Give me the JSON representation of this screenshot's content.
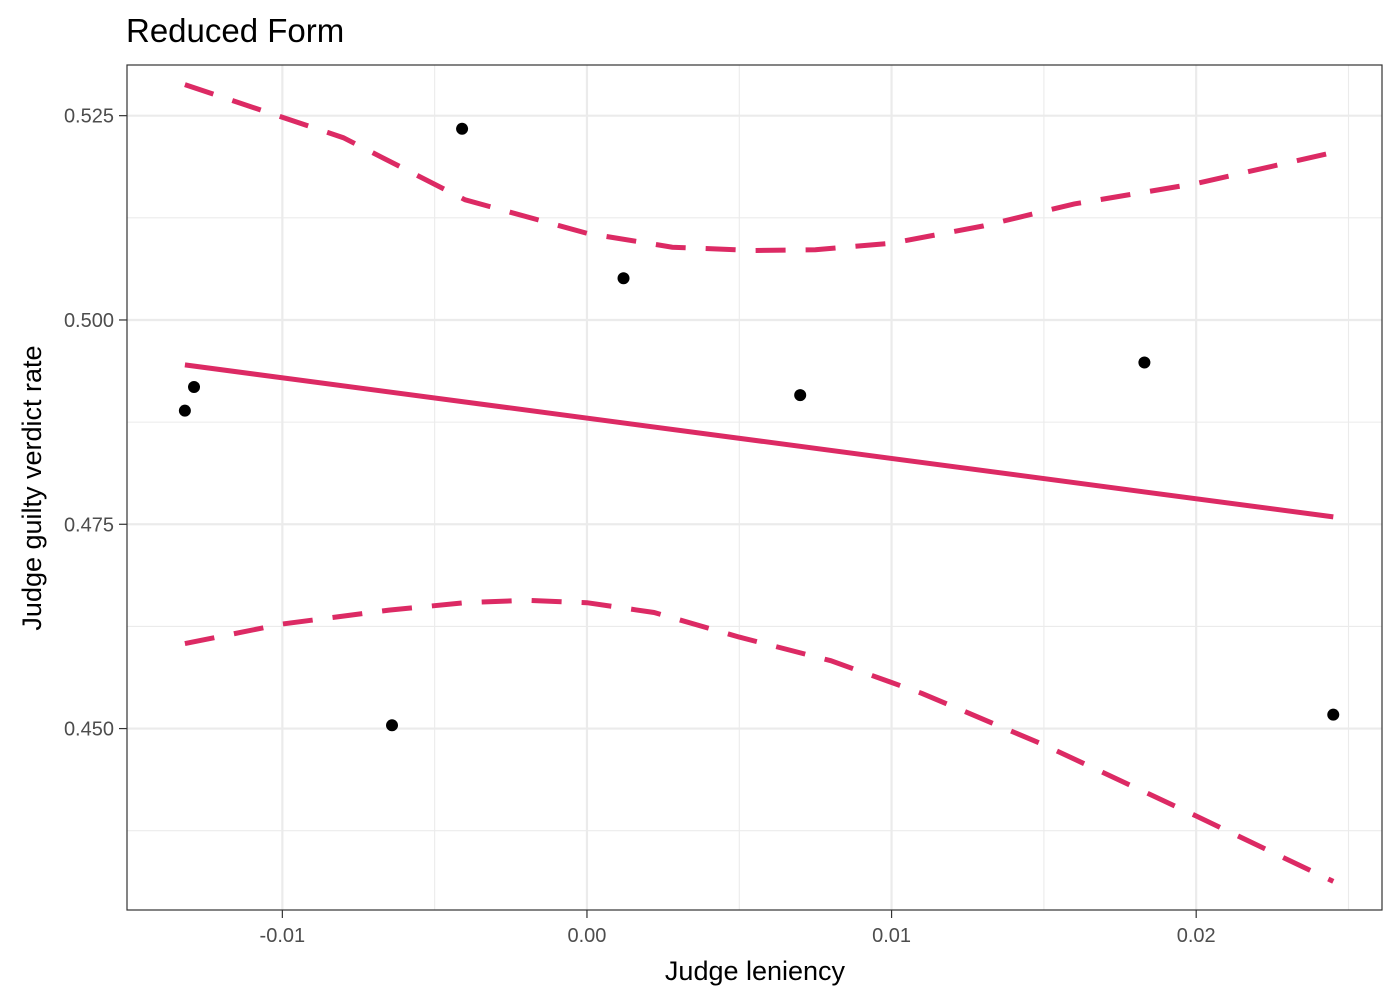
{
  "chart_data": {
    "type": "scatter",
    "title": "Reduced Form",
    "xlabel": "Judge leniency",
    "ylabel": "Judge guilty verdict rate",
    "xlim": [
      -0.0151,
      0.0261
    ],
    "ylim": [
      0.4278,
      0.5312
    ],
    "x_ticks": [
      -0.01,
      0.0,
      0.01,
      0.02
    ],
    "x_tick_labels": [
      "-0.01",
      "0.00",
      "0.01",
      "0.02"
    ],
    "x_minor": [
      -0.005,
      0.005,
      0.015,
      0.025
    ],
    "y_ticks": [
      0.45,
      0.475,
      0.5,
      0.525
    ],
    "y_tick_labels": [
      "0.450",
      "0.475",
      "0.500",
      "0.525"
    ],
    "y_minor": [
      0.4375,
      0.4625,
      0.4875,
      0.5125
    ],
    "grid": true,
    "points": {
      "color": "#000000",
      "x": [
        -0.0132,
        -0.0129,
        -0.0064,
        -0.0041,
        0.0012,
        0.007,
        0.0183,
        0.0245
      ],
      "y": [
        0.4889,
        0.4918,
        0.4504,
        0.5234,
        0.5051,
        0.4908,
        0.4948,
        0.4517
      ]
    },
    "fit": {
      "color": "#dc2a64",
      "x": [
        -0.0132,
        0.0245
      ],
      "y": [
        0.4945,
        0.4759
      ]
    },
    "upper_ci": {
      "color": "#dc2a64",
      "dashed": true,
      "x": [
        -0.0132,
        -0.008,
        -0.004,
        0.0,
        0.0028,
        0.0055,
        0.0075,
        0.01,
        0.013,
        0.016,
        0.02,
        0.0245
      ],
      "y": [
        0.5288,
        0.5223,
        0.5147,
        0.5106,
        0.5089,
        0.5085,
        0.5086,
        0.5094,
        0.5115,
        0.5142,
        0.5167,
        0.5205
      ]
    },
    "lower_ci": {
      "color": "#dc2a64",
      "dashed": true,
      "x": [
        -0.0132,
        -0.01,
        -0.0065,
        -0.004,
        -0.002,
        0.0,
        0.0022,
        0.005,
        0.008,
        0.011,
        0.015,
        0.02,
        0.0245
      ],
      "y": [
        0.4604,
        0.4628,
        0.4645,
        0.4654,
        0.4657,
        0.4654,
        0.4642,
        0.4612,
        0.4583,
        0.4543,
        0.448,
        0.4393,
        0.4313
      ]
    }
  }
}
